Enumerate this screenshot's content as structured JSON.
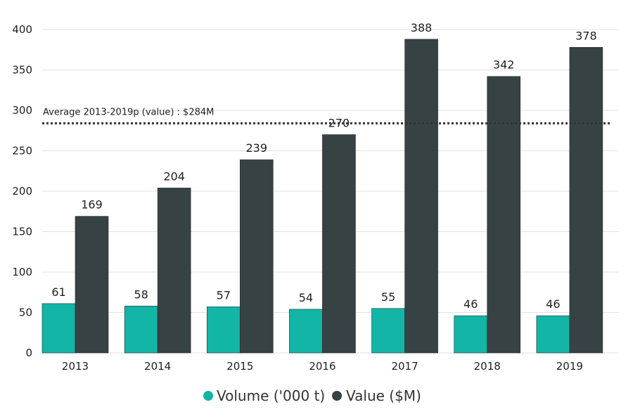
{
  "chart_data": {
    "type": "bar",
    "categories": [
      "2013",
      "2014",
      "2015",
      "2016",
      "2017",
      "2018",
      "2019"
    ],
    "series": [
      {
        "name": "Volume ('000 t)",
        "color": "#12b5a6",
        "values": [
          61,
          58,
          57,
          54,
          55,
          46,
          46
        ]
      },
      {
        "name": "Value ($M)",
        "color": "#374245",
        "values": [
          169,
          204,
          239,
          270,
          388,
          342,
          378
        ]
      }
    ],
    "ylim": [
      0,
      400
    ],
    "yticks": [
      0,
      50,
      100,
      150,
      200,
      250,
      300,
      350,
      400
    ],
    "grid": true,
    "legend": "bottom",
    "reference_line": {
      "value": 284,
      "label": "Average 2013-2019p (value) : $284M",
      "style": "dotted",
      "color": "#333333"
    }
  }
}
